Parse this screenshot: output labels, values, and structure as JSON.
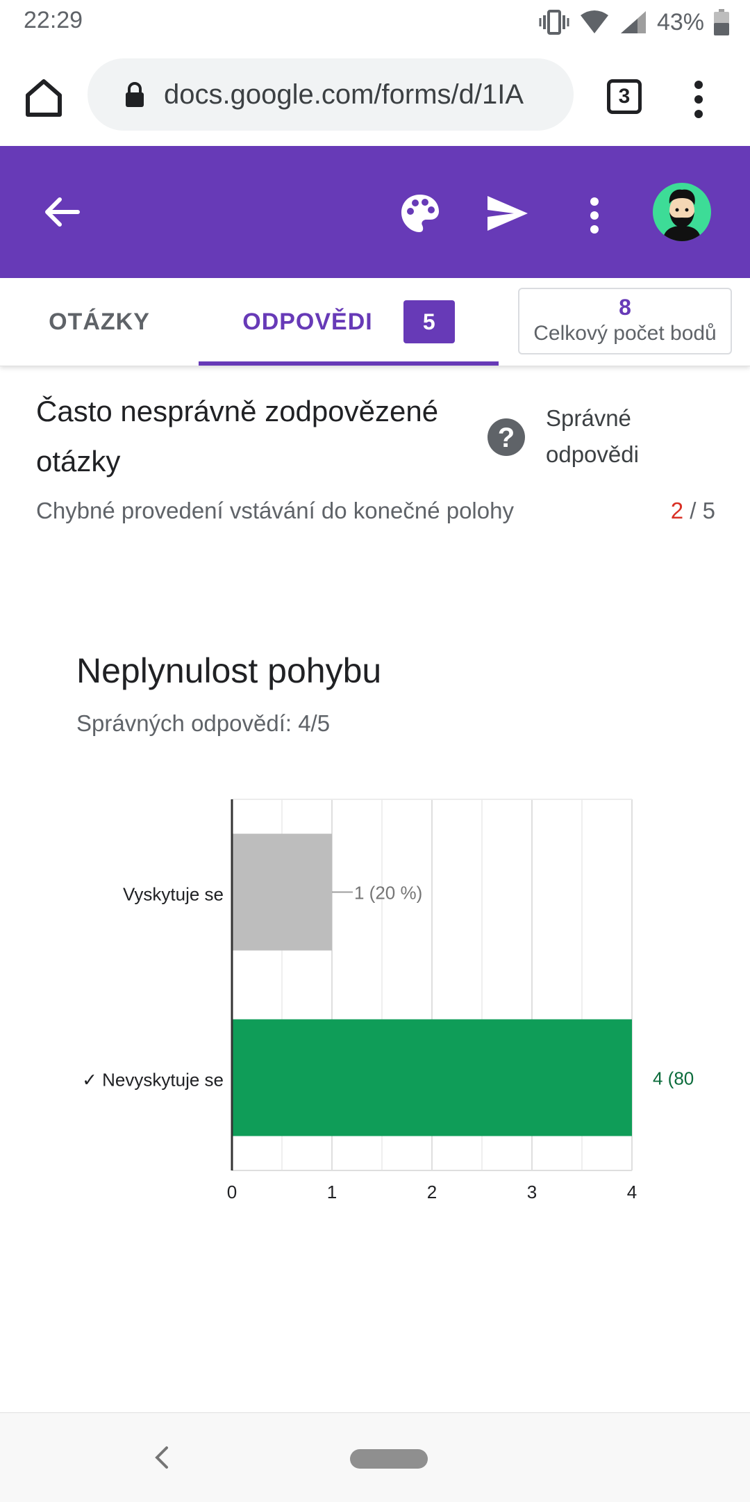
{
  "status": {
    "time": "22:29",
    "battery": "43%"
  },
  "browser": {
    "url": "docs.google.com/forms/d/1IA",
    "tab_count": "3"
  },
  "tabs": {
    "questions": "OTÁZKY",
    "responses": "ODPOVĚDI",
    "responses_count": "5",
    "points_value": "8",
    "points_label": "Celkový počet bodů"
  },
  "frequently_missed": {
    "title": "Často nesprávně zodpovězené otázky",
    "correct_answers_label": "Správné odpovědi",
    "item": "Chybné provedení vstávání do konečné polohy",
    "score_correct": "2",
    "score_separator": " / ",
    "score_total": "5"
  },
  "question": {
    "title": "Neplynulost pohybu",
    "subtitle": "Správných odpovědí: 4/5"
  },
  "chart_data": {
    "type": "bar",
    "orientation": "horizontal",
    "categories": [
      "Vyskytuje se",
      "✓ Nevyskytuje se"
    ],
    "values": [
      1,
      4
    ],
    "data_labels": [
      "1 (20 %)",
      "4 (80"
    ],
    "x_ticks": [
      "0",
      "1",
      "2",
      "3",
      "4"
    ],
    "xlim": [
      0,
      4
    ],
    "grid": true,
    "colors": {
      "incorrect": "#bdbdbd",
      "correct": "#0f9d58",
      "correct_label": "#0b6b3b",
      "incorrect_label": "#757575"
    }
  },
  "colors": {
    "brand": "#673ab7",
    "error": "#d93025"
  }
}
